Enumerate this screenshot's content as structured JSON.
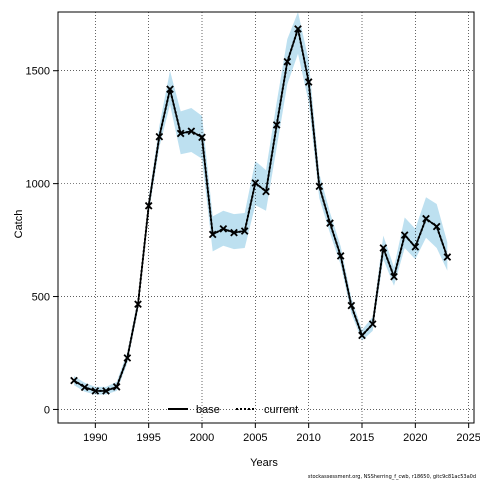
{
  "chart_data": {
    "type": "line",
    "title": "",
    "xlabel": "Years",
    "ylabel": "Catch",
    "xlim": [
      1986.5,
      2025.5
    ],
    "ylim": [
      -60,
      1760
    ],
    "xticks": [
      1990,
      1995,
      2000,
      2005,
      2010,
      2015,
      2020,
      2025
    ],
    "yticks": [
      0,
      500,
      1000,
      1500
    ],
    "grid": true,
    "legend_position": "bottom-center",
    "legend": [
      {
        "label": "base",
        "style": "solid"
      },
      {
        "label": "current",
        "style": "dotted"
      }
    ],
    "x": [
      1988,
      1989,
      1990,
      1991,
      1992,
      1993,
      1994,
      1995,
      1996,
      1997,
      1998,
      1999,
      2000,
      2001,
      2002,
      2003,
      2004,
      2005,
      2006,
      2007,
      2008,
      2009,
      2010,
      2011,
      2012,
      2013,
      2014,
      2015,
      2016,
      2017,
      2018,
      2019,
      2020,
      2021,
      2022,
      2023
    ],
    "series": [
      {
        "name": "base",
        "style": "solid",
        "color": "#000000",
        "values": [
          128,
          98,
          82,
          82,
          100,
          228,
          466,
          902,
          1208,
          1418,
          1222,
          1232,
          1205,
          775,
          800,
          783,
          790,
          1003,
          965,
          1260,
          1540,
          1685,
          1450,
          988,
          825,
          680,
          460,
          328,
          378,
          715,
          588,
          772,
          720,
          845,
          810,
          675
        ]
      },
      {
        "name": "current",
        "style": "dotted",
        "color": "#000000",
        "values": [
          128,
          98,
          82,
          82,
          100,
          228,
          466,
          902,
          1208,
          1418,
          1222,
          1232,
          1205,
          775,
          800,
          783,
          790,
          1003,
          965,
          1260,
          1540,
          1685,
          1450,
          988,
          825,
          680,
          460,
          328,
          378,
          715,
          588,
          772,
          720,
          845,
          810,
          675
        ]
      }
    ],
    "confidence_band": {
      "color": "#bde0f0",
      "lower": [
        108,
        78,
        66,
        66,
        82,
        205,
        440,
        870,
        1160,
        1350,
        1130,
        1140,
        1110,
        700,
        725,
        710,
        715,
        905,
        880,
        1160,
        1440,
        1575,
        1360,
        935,
        780,
        640,
        425,
        305,
        348,
        665,
        548,
        715,
        665,
        760,
        715,
        615
      ],
      "upper": [
        148,
        118,
        100,
        100,
        122,
        252,
        492,
        935,
        1255,
        1500,
        1320,
        1335,
        1300,
        855,
        880,
        865,
        870,
        1100,
        1060,
        1360,
        1640,
        1760,
        1545,
        1045,
        872,
        722,
        495,
        352,
        410,
        770,
        630,
        850,
        800,
        940,
        910,
        740
      ]
    },
    "observed_markers": {
      "symbol": "x",
      "values": [
        128,
        98,
        82,
        82,
        100,
        228,
        466,
        902,
        1208,
        1418,
        1222,
        1232,
        1205,
        775,
        800,
        783,
        790,
        1003,
        965,
        1260,
        1540,
        1685,
        1450,
        988,
        825,
        680,
        460,
        328,
        378,
        715,
        588,
        772,
        720,
        845,
        810,
        675
      ]
    },
    "footnote": "stockassessment.org, NSSherring_f_cwb, r18650, gitc9c81ac53a0d"
  }
}
